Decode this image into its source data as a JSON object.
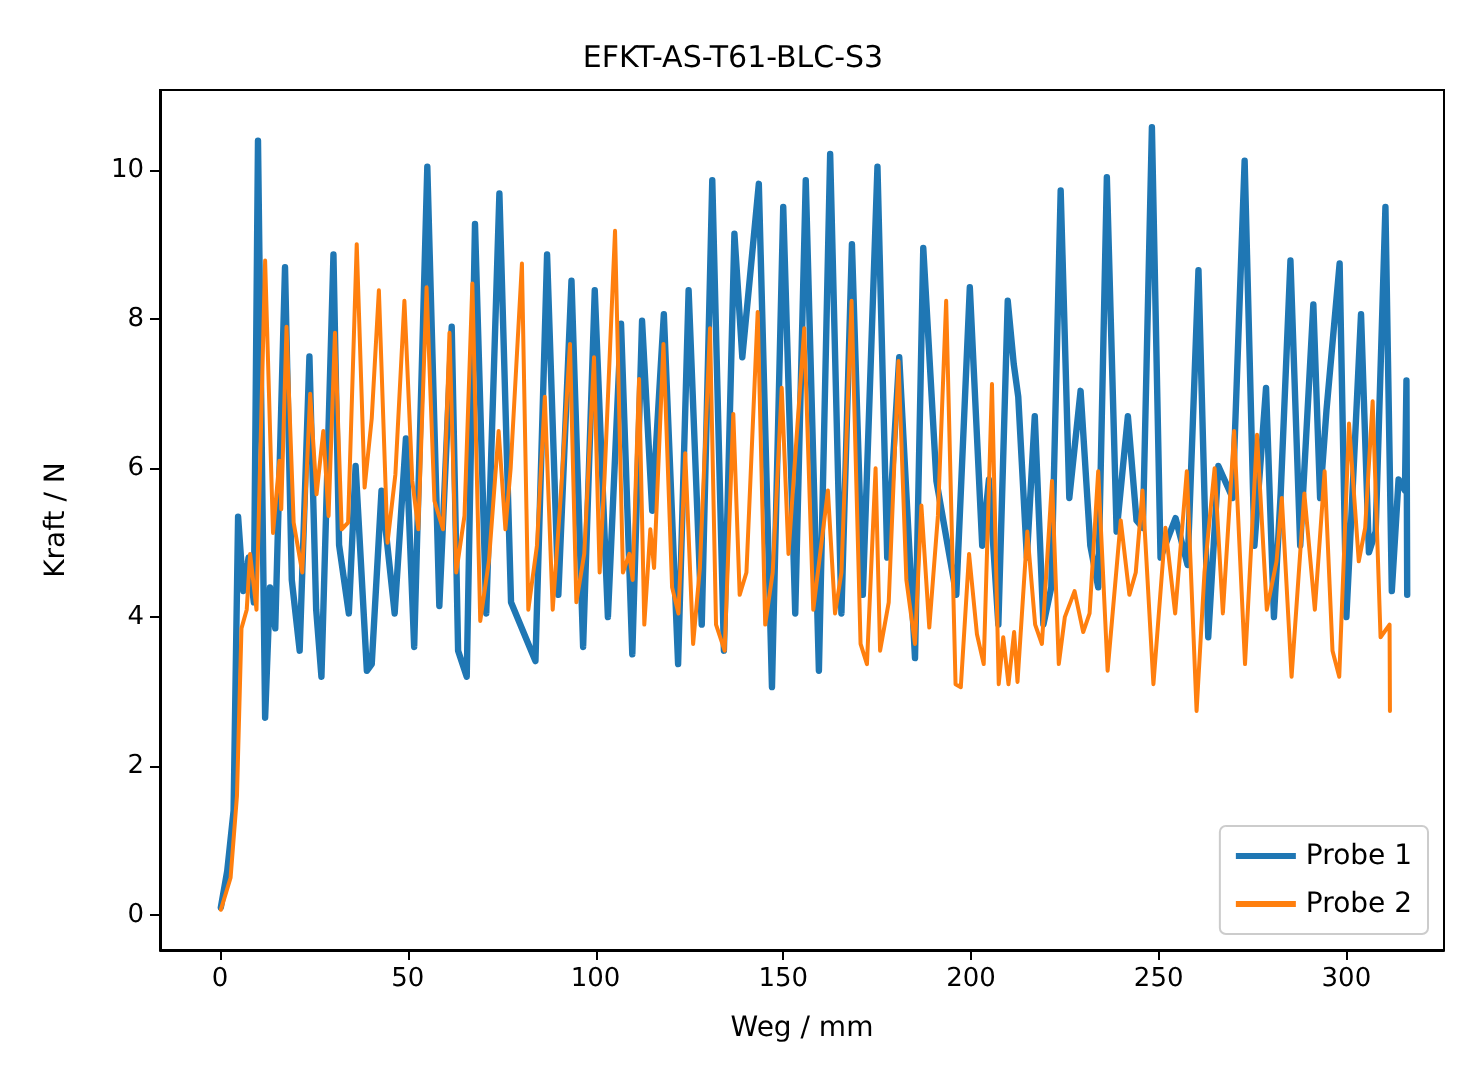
{
  "chart_data": {
    "type": "line",
    "title": "EFKT-AS-T61-BLC-S3",
    "xlabel": "Weg / mm",
    "ylabel": "Kraft / N",
    "xlim": [
      -16,
      326
    ],
    "ylim": [
      -0.47,
      11.08
    ],
    "xticks": [
      0,
      50,
      100,
      150,
      200,
      250,
      300
    ],
    "yticks": [
      0,
      2,
      4,
      6,
      8,
      10
    ],
    "grid": false,
    "legend": "bottom right",
    "marker": "none",
    "line_style": "solid",
    "series": [
      {
        "name": "Probe 1",
        "color": "#1f77b4",
        "x": [
          0.2,
          1.9,
          3.6,
          4.8,
          6.2,
          7.6,
          9,
          10.1,
          12,
          13.3,
          14.7,
          17.3,
          19.1,
          21.2,
          23.8,
          25.6,
          27,
          30.2,
          31.7,
          34.3,
          36.1,
          39.1,
          40.4,
          43,
          46.5,
          49.5,
          51.7,
          55.2,
          58.4,
          61.7,
          63.4,
          65.7,
          67.9,
          70.9,
          74.4,
          77.5,
          84,
          87.1,
          90.1,
          93.6,
          96.7,
          99.8,
          103.3,
          106.8,
          109.8,
          112.4,
          115.1,
          118.2,
          122,
          124.8,
          128.3,
          131.1,
          134.2,
          137,
          139.1,
          143.5,
          147,
          150,
          153.2,
          156,
          159.5,
          162.5,
          165.5,
          168.3,
          171.2,
          175.1,
          177.7,
          180.9,
          185.1,
          187.3,
          190.8,
          196.1,
          199.7,
          203,
          204.8,
          207.3,
          209.8,
          211.4,
          212.6,
          214.9,
          217,
          219.3,
          221.4,
          223.9,
          226.2,
          229.2,
          231.8,
          233.9,
          236.2,
          238.8,
          241.8,
          244.1,
          245.8,
          248.2,
          250.5,
          254.5,
          257.7,
          260.6,
          263.2,
          265.9,
          269.7,
          272.9,
          275.5,
          278.6,
          280.7,
          282.5,
          285.1,
          287.7,
          291.2,
          293,
          294.7,
          298.2,
          300,
          301.3,
          303.9,
          306,
          307.8,
          310.4,
          312.1,
          313.9,
          315.6,
          316,
          316.2
        ],
        "values": [
          0.1,
          0.59,
          1.4,
          5.35,
          4.35,
          4.8,
          4.2,
          10.4,
          2.65,
          4.4,
          3.85,
          8.7,
          4.5,
          3.55,
          7.5,
          4.1,
          3.2,
          8.87,
          4.97,
          4.05,
          6.03,
          3.28,
          3.37,
          5.7,
          4.05,
          6.4,
          3.6,
          10.05,
          4.15,
          7.9,
          3.55,
          3.2,
          9.28,
          4.05,
          9.69,
          4.2,
          3.41,
          8.87,
          4.3,
          8.52,
          3.6,
          8.39,
          4.0,
          7.94,
          3.5,
          7.98,
          5.43,
          8.07,
          3.37,
          8.39,
          3.9,
          9.87,
          3.55,
          9.15,
          7.49,
          9.82,
          3.06,
          9.51,
          4.05,
          9.87,
          3.28,
          10.22,
          4.05,
          9.01,
          4.3,
          10.05,
          4.8,
          7.49,
          3.45,
          8.96,
          5.83,
          4.3,
          8.43,
          4.96,
          5.85,
          3.9,
          8.25,
          7.4,
          6.96,
          4.8,
          6.7,
          3.9,
          4.4,
          9.73,
          5.6,
          7.04,
          4.96,
          4.4,
          9.91,
          5.15,
          6.7,
          5.3,
          5.2,
          10.58,
          4.8,
          5.33,
          4.7,
          8.66,
          3.73,
          6.03,
          5.6,
          10.13,
          4.96,
          7.08,
          4.0,
          5.66,
          8.79,
          4.96,
          8.2,
          5.6,
          6.78,
          8.75,
          4.0,
          5.33,
          8.07,
          4.87,
          5.15,
          9.51,
          4.35,
          5.85,
          5.7,
          7.18,
          4.3
        ]
      },
      {
        "name": "Probe 2",
        "color": "#ff7f0e",
        "x": [
          0.2,
          2.8,
          4.5,
          5.7,
          7.1,
          8,
          9.7,
          12,
          14.1,
          15.8,
          16.3,
          17.7,
          19.6,
          21.9,
          24,
          25.7,
          27.5,
          28.9,
          30.6,
          32.4,
          34.1,
          36.4,
          38.5,
          40.4,
          42.3,
          44.6,
          46.7,
          49.1,
          51.2,
          52.8,
          55,
          57.1,
          59.4,
          61.1,
          62.9,
          65.1,
          67.2,
          69.3,
          71.6,
          74.2,
          76,
          77.4,
          80.4,
          82.1,
          84.4,
          86.5,
          88.6,
          90.9,
          93.2,
          94.9,
          97,
          99.6,
          101.1,
          102.4,
          105.2,
          107.3,
          109,
          109.9,
          111.6,
          113,
          114.6,
          115.6,
          118.1,
          120.4,
          122.1,
          123.9,
          126,
          127.8,
          130.5,
          132.1,
          134.4,
          136.7,
          138.4,
          140.2,
          143.2,
          145.2,
          147.2,
          149.6,
          151.4,
          152.8,
          155.6,
          158,
          161.9,
          163.8,
          165.5,
          168.2,
          170.6,
          172.3,
          174.6,
          175.8,
          178.1,
          180.7,
          182.8,
          185.1,
          186.8,
          188.9,
          191.2,
          193.4,
          195.9,
          197.3,
          199.5,
          201.6,
          203.4,
          205.6,
          207.4,
          208.6,
          210,
          211.5,
          212.4,
          215,
          217.1,
          218.9,
          221.6,
          223.4,
          225,
          227.6,
          229.9,
          231.6,
          233.9,
          236.4,
          239.9,
          242.2,
          243.9,
          245.7,
          248.6,
          251.8,
          254.4,
          257.5,
          260.1,
          262.2,
          264.9,
          267.1,
          270.1,
          273,
          276.2,
          278.8,
          281.4,
          282.8,
          285.4,
          288.8,
          291.6,
          294.2,
          296.3,
          298.1,
          300.7,
          303.3,
          305,
          307,
          309.1,
          311.5,
          311.6
        ],
        "values": [
          0.07,
          0.5,
          1.6,
          3.85,
          4.1,
          4.85,
          4.1,
          8.79,
          5.13,
          6.1,
          5.45,
          7.9,
          5.27,
          4.6,
          7.0,
          5.65,
          6.5,
          5.36,
          7.82,
          5.18,
          5.27,
          9.01,
          5.74,
          6.67,
          8.39,
          5.0,
          5.92,
          8.25,
          5.83,
          5.18,
          8.43,
          5.56,
          5.18,
          7.82,
          4.6,
          5.36,
          8.48,
          3.95,
          4.75,
          6.5,
          5.18,
          6.0,
          8.75,
          4.1,
          4.96,
          6.96,
          4.1,
          5.74,
          7.67,
          4.2,
          4.85,
          7.49,
          4.6,
          5.87,
          9.19,
          4.6,
          4.85,
          4.5,
          7.2,
          3.9,
          5.18,
          4.66,
          7.67,
          4.4,
          4.05,
          6.2,
          3.64,
          4.66,
          7.88,
          3.9,
          3.55,
          6.73,
          4.3,
          4.6,
          8.1,
          3.9,
          4.6,
          7.08,
          4.85,
          5.87,
          7.88,
          4.1,
          5.7,
          4.05,
          4.6,
          8.25,
          3.64,
          3.37,
          6.0,
          3.55,
          4.2,
          7.44,
          4.5,
          3.64,
          5.5,
          3.86,
          5.36,
          8.25,
          3.1,
          3.06,
          4.85,
          3.77,
          3.37,
          7.13,
          3.1,
          3.73,
          3.1,
          3.8,
          3.13,
          5.15,
          3.9,
          3.64,
          5.83,
          3.37,
          4.0,
          4.35,
          3.8,
          4.05,
          5.96,
          3.28,
          5.3,
          4.3,
          4.6,
          5.7,
          3.1,
          5.2,
          4.05,
          5.96,
          2.74,
          4.6,
          6.0,
          4.05,
          6.5,
          3.37,
          6.45,
          4.1,
          4.75,
          5.6,
          3.2,
          5.66,
          4.1,
          5.96,
          3.55,
          3.2,
          6.6,
          4.75,
          5.2,
          6.9,
          3.73,
          3.9,
          2.74
        ]
      }
    ]
  }
}
